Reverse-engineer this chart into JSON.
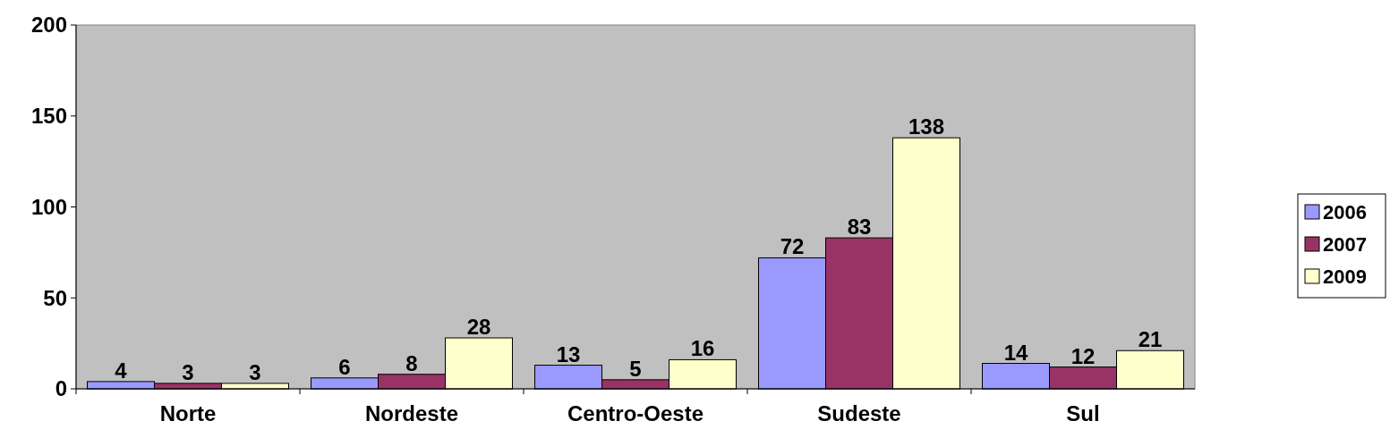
{
  "chart_data": {
    "type": "bar",
    "categories": [
      "Norte",
      "Nordeste",
      "Centro-Oeste",
      "Sudeste",
      "Sul"
    ],
    "series": [
      {
        "name": "2006",
        "color": "#9999ff",
        "values": [
          4,
          6,
          13,
          72,
          14
        ]
      },
      {
        "name": "2007",
        "color": "#993366",
        "values": [
          3,
          8,
          5,
          83,
          12
        ]
      },
      {
        "name": "2009",
        "color": "#ffffcc",
        "values": [
          3,
          28,
          16,
          138,
          21
        ]
      }
    ],
    "ylim": [
      0,
      200
    ],
    "yticks": [
      0,
      50,
      100,
      150,
      200
    ],
    "data_labels": true,
    "legend": "right",
    "grid": false
  }
}
